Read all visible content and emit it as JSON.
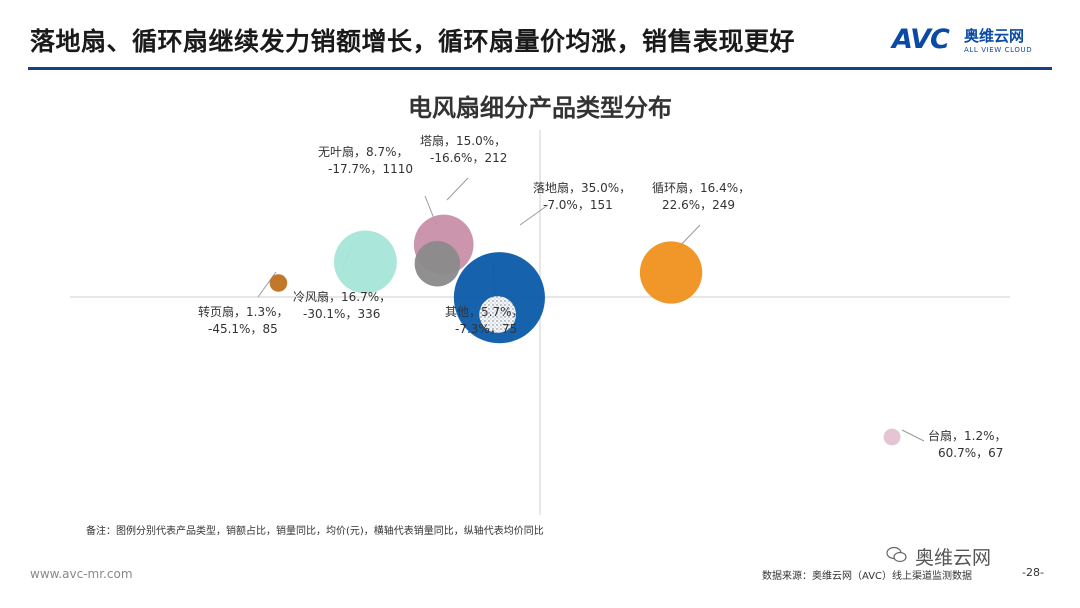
{
  "header": {
    "title": "落地扇、循环扇继续发力销额增长，循环扇量价均涨，销售表现更好",
    "logo_mark": "AVC",
    "logo_cn": "奥维云网",
    "logo_en": "ALL VIEW CLOUD"
  },
  "chart_data": {
    "type": "scatter",
    "title": "电风扇细分产品类型分布",
    "xlabel": "",
    "ylabel": "",
    "grid": false,
    "points": [
      {
        "name": "落地扇",
        "share": "35.0%",
        "volume_yoy": "-7.0%",
        "price": "151",
        "x": -7.0,
        "y": -0.2,
        "color": "#0a5aa8",
        "label_l1": "落地扇，35.0%，",
        "label_l2": "-7.0%，151"
      },
      {
        "name": "循环扇",
        "share": "16.4%",
        "volume_yoy": "22.6%",
        "price": "249",
        "x": 22.6,
        "y": 7.0,
        "color": "#f0901e",
        "label_l1": "循环扇，16.4%，",
        "label_l2": "22.6%，249"
      },
      {
        "name": "塔扇",
        "share": "15.0%",
        "volume_yoy": "-16.6%",
        "price": "212",
        "x": -16.6,
        "y": 15.0,
        "color": "#c78fa9",
        "label_l1": "塔扇，15.0%，",
        "label_l2": "-16.6%，212"
      },
      {
        "name": "冷风扇",
        "share": "16.7%",
        "volume_yoy": "-30.1%",
        "price": "336",
        "x": -30.1,
        "y": 10.0,
        "color": "#a5e6d8",
        "label_l1": "冷风扇，16.7%，",
        "label_l2": "-30.1%，336"
      },
      {
        "name": "无叶扇",
        "share": "8.7%",
        "volume_yoy": "-17.7%",
        "price": "1110",
        "x": -17.7,
        "y": 9.5,
        "color": "#8a8a8a",
        "label_l1": "无叶扇，8.7%，",
        "label_l2": "-17.7%，1110"
      },
      {
        "name": "其他",
        "share": "5.7%",
        "volume_yoy": "-7.3%",
        "price": "75",
        "x": -7.3,
        "y": -5.0,
        "color": "#dadada",
        "label_l1": "其他，5.7%，",
        "label_l2": "-7.3%，75"
      },
      {
        "name": "转页扇",
        "share": "1.3%",
        "volume_yoy": "-45.1%",
        "price": "85",
        "x": -45.1,
        "y": 4.0,
        "color": "#c07020",
        "label_l1": "转页扇，1.3%，",
        "label_l2": "-45.1%，85"
      },
      {
        "name": "台扇",
        "share": "1.2%",
        "volume_yoy": "60.7%",
        "price": "67",
        "x": 60.7,
        "y": -40.0,
        "color": "#e4c2d2",
        "label_l1": "台扇，1.2%，",
        "label_l2": "60.7%，67"
      }
    ]
  },
  "footer": {
    "note": "备注：图例分别代表产品类型，销额占比，销量同比，均价(元)，横轴代表销量同比，纵轴代表均价同比",
    "url": "www.avc-mr.com",
    "source": "数据来源：奥维云网（AVC）线上渠道监测数据",
    "page": "-28-",
    "wechat": "奥维云网"
  },
  "colors": {
    "accent": "#14408c",
    "logo": "#0a4aa3"
  }
}
